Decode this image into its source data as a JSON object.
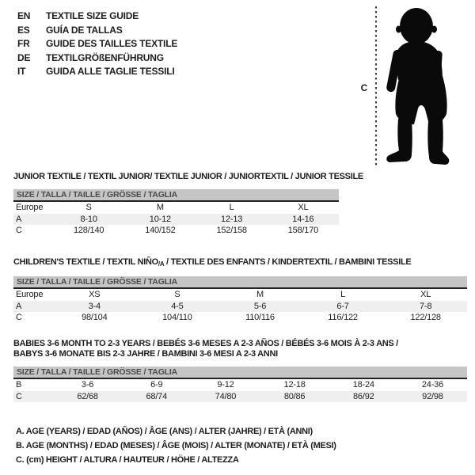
{
  "colors": {
    "bar_bg": "#c5c5c5",
    "bar_text": "#4a4a4a",
    "row_shade": "#efefef",
    "separator": "#222222",
    "text": "#1d1d1d",
    "silhouette": "#0a0a0a"
  },
  "language_guide": {
    "items": [
      {
        "code": "EN",
        "label": "TEXTILE SIZE GUIDE"
      },
      {
        "code": "ES",
        "label": "GUÍA DE TALLAS"
      },
      {
        "code": "FR",
        "label": "GUIDE DES TAILLES TEXTILE"
      },
      {
        "code": "DE",
        "label": "TEXTILGRÖßENFÜHRUNG"
      },
      {
        "code": "IT",
        "label": "GUIDA ALLE TAGLIE TESSILI"
      }
    ]
  },
  "figure": {
    "height_label": "C"
  },
  "sections": [
    {
      "title_lines": [
        [
          {
            "text": "JUNIOR TEXTILE / TEXTIL JUNIOR/ TEXTILE JUNIOR / JUNIORTEXTIL / JUNIOR TESSILE"
          }
        ]
      ],
      "size_bar": "SIZE / TALLA / TAILLE / GRÖSSE / TAGLIA",
      "rows": [
        {
          "cells": [
            "Europe",
            "S",
            "M",
            "L",
            "XL"
          ],
          "shaded": false
        },
        {
          "cells": [
            "A",
            "8-10",
            "10-12",
            "12-13",
            "14-16"
          ],
          "shaded": true
        },
        {
          "cells": [
            "C",
            "128/140",
            "140/152",
            "152/158",
            "158/170"
          ],
          "shaded": false
        }
      ]
    },
    {
      "title_lines": [
        [
          {
            "text": "CHILDREN'S TEXTILE / TEXTIL NIÑO"
          },
          {
            "text": "/A",
            "sub": true
          },
          {
            "text": " / TEXTILE DES ENFANTS / KINDERTEXTIL / BAMBINI TESSILE"
          }
        ]
      ],
      "size_bar": "SIZE / TALLA / TAILLE / GRÖSSE / TAGLIA",
      "rows": [
        {
          "cells": [
            "Europe",
            "XS",
            "S",
            "M",
            "L",
            "XL"
          ],
          "shaded": false
        },
        {
          "cells": [
            "A",
            "3-4",
            "4-5",
            "5-6",
            "6-7",
            "7-8"
          ],
          "shaded": true
        },
        {
          "cells": [
            "C",
            "98/104",
            "104/110",
            "110/116",
            "116/122",
            "122/128"
          ],
          "shaded": false
        }
      ]
    },
    {
      "title_lines": [
        [
          {
            "text": "BABIES 3-6 MONTH TO 2-3 YEARS / BEBÉS 3-6 MESES A 2-3 AÑOS / BÉBÉS 3-6 MOIS À 2-3 ANS /"
          }
        ],
        [
          {
            "text": "BABYS 3-6 MONATE BIS 2-3 JAHRE / BAMBINI 3-6 MESI A 2-3 ANNI"
          }
        ]
      ],
      "size_bar": "SIZE / TALLA / TAILLE / GRÖSSE / TAGLIA",
      "rows": [
        {
          "cells": [
            "B",
            "3-6",
            "6-9",
            "9-12",
            "12-18",
            "18-24",
            "24-36"
          ],
          "shaded": false
        },
        {
          "cells": [
            "C",
            "62/68",
            "68/74",
            "74/80",
            "80/86",
            "86/92",
            "92/98"
          ],
          "shaded": true
        }
      ]
    }
  ],
  "notes": [
    "A. AGE (YEARS) / EDAD (AÑOS) / ÂGE (ANS) / ALTER (JAHRE) / ETÀ (ANNI)",
    "B. AGE (MONTHS) / EDAD (MESES) / ÂGE (MOIS) / ALTER (MONATE) / ETÀ (MESI)",
    "C. (cm) HEIGHT / ALTURA / HAUTEUR / HÖHE / ALTEZZA"
  ]
}
